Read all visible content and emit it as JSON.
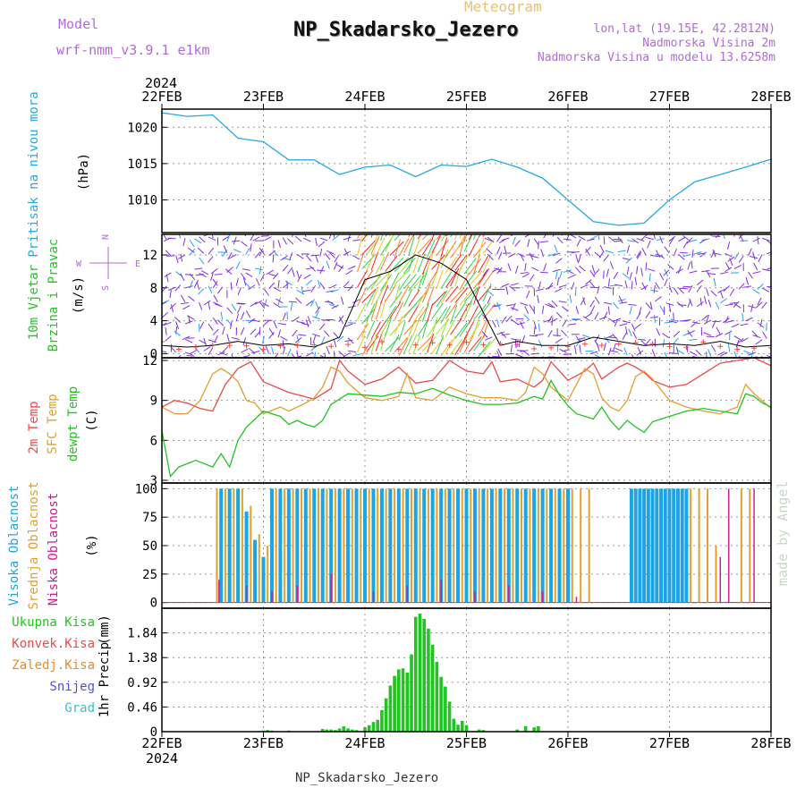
{
  "header": {
    "model_label": "Model",
    "model_value": "wrf-nmm_v3.9.1  e1km",
    "meteogram": "Meteogram",
    "title": "NP_Skadarsko_Jezero",
    "lonlat": "lon,lat (19.15E, 42.2812N)",
    "elevation": "Nadmorska Visina 2m",
    "model_elevation": "Nadmorska Visina u modelu 13.6258m",
    "footer": "NP_Skadarsko_Jezero",
    "credit": "made by Angel",
    "year": "2024"
  },
  "colors": {
    "purple": "#b36ad8",
    "meteogram": "#e8c07a",
    "pressure": "#29a8e0",
    "temp2m": "#e84a4a",
    "sfc": "#e0a030",
    "dewpt": "#22c422",
    "high_cloud": "#1ca4e4",
    "mid_cloud": "#e0a030",
    "low_cloud": "#d01c8c",
    "precip": "#22c422"
  },
  "chart_data": [
    {
      "type": "line",
      "id": "pressure",
      "ylabel_name": "Pritisak na nivou mora",
      "ylabel_unit": "(hPa)",
      "xlim": [
        0,
        144
      ],
      "ylim": [
        1005.5,
        1022.5
      ],
      "yticks": [
        1010,
        1015,
        1020
      ],
      "grid": true,
      "x_ticks": [
        "22FEB",
        "23FEB",
        "24FEB",
        "25FEB",
        "26FEB",
        "27FEB",
        "28FEB"
      ],
      "series": [
        {
          "x": [
            0,
            6,
            12,
            18,
            24,
            30,
            36,
            42,
            48,
            54,
            60,
            66,
            72,
            78,
            84,
            90,
            96,
            102,
            108,
            114,
            120,
            126,
            132,
            138,
            144
          ],
          "values": [
            1022,
            1021.5,
            1021.7,
            1018.5,
            1018,
            1015.5,
            1015.5,
            1013.5,
            1014.5,
            1014.8,
            1013.2,
            1014.8,
            1014.6,
            1015.6,
            1014.5,
            1013,
            1010,
            1007,
            1006.5,
            1006.8,
            1010,
            1012.5,
            1013.5,
            1014.5,
            1015.6
          ]
        }
      ]
    },
    {
      "type": "scatter",
      "id": "wind",
      "ylabel_name": "10m Vjetar",
      "ylabel_name2": "Brzina i Pravac",
      "ylabel_unit": "(m/s)",
      "compass_n": "N",
      "compass_s": "S",
      "compass_e": "E",
      "compass_w": "W",
      "xlim": [
        0,
        144
      ],
      "ylim": [
        -0.5,
        14.5
      ],
      "yticks": [
        0,
        4,
        8,
        12
      ],
      "grid": true,
      "series": [
        {
          "name": "speed",
          "x": [
            0,
            6,
            12,
            18,
            24,
            30,
            36,
            42,
            48,
            54,
            60,
            66,
            72,
            76,
            80,
            84,
            90,
            96,
            102,
            108,
            114,
            120,
            126,
            132,
            138,
            144
          ],
          "values": [
            1,
            0.8,
            1,
            1.5,
            1,
            1.2,
            0.8,
            2,
            9,
            10,
            12,
            11,
            9,
            5,
            1,
            1.5,
            1,
            1,
            2,
            1.5,
            1,
            1.2,
            1,
            1.5,
            0.8,
            1
          ]
        }
      ]
    },
    {
      "type": "line",
      "id": "temperature",
      "ylabel_name": "2m Temp",
      "ylabel_name2": "SFC Temp",
      "ylabel_name3": "dewpt Temp",
      "ylabel_unit": "(C)",
      "xlim": [
        0,
        144
      ],
      "ylim": [
        2.8,
        12.2
      ],
      "yticks": [
        3,
        6,
        9,
        12
      ],
      "grid": true,
      "series": [
        {
          "name": "2m Temp",
          "x": [
            0,
            3,
            6,
            9,
            12,
            15,
            18,
            21,
            24,
            30,
            36,
            40,
            42,
            44,
            48,
            52,
            56,
            60,
            64,
            68,
            72,
            76,
            78,
            80,
            84,
            88,
            90,
            92,
            96,
            100,
            102,
            104,
            108,
            110,
            112,
            114,
            116,
            120,
            124,
            128,
            132,
            136,
            140,
            144
          ],
          "values": [
            8.5,
            9,
            8.8,
            8.4,
            8.2,
            10.2,
            11.4,
            11.9,
            10.4,
            9.6,
            9.1,
            9.9,
            12,
            11.2,
            10.2,
            10.6,
            11.5,
            10.3,
            10.5,
            12,
            11.2,
            11,
            11.9,
            10.4,
            10.6,
            10,
            10.5,
            11.9,
            10.5,
            11.2,
            11.8,
            10.6,
            11.5,
            11.8,
            11.5,
            11.1,
            10.5,
            10,
            10.2,
            11,
            11.8,
            12,
            12.2,
            11.6
          ]
        },
        {
          "name": "SFC Temp",
          "x": [
            0,
            3,
            6,
            9,
            12,
            14,
            16,
            18,
            20,
            22,
            24,
            28,
            30,
            34,
            36,
            38,
            40,
            42,
            44,
            48,
            52,
            56,
            58,
            60,
            64,
            68,
            72,
            76,
            80,
            84,
            86,
            88,
            90,
            92,
            96,
            98,
            100,
            102,
            104,
            106,
            108,
            110,
            112,
            114,
            116,
            120,
            124,
            128,
            132,
            136,
            138,
            140,
            144
          ],
          "values": [
            8.5,
            8,
            8,
            9,
            11,
            11.4,
            11,
            10.4,
            9,
            8.8,
            8,
            8.5,
            8.2,
            8.8,
            9.2,
            10,
            11.5,
            11.2,
            10.3,
            9.2,
            9,
            9.3,
            11,
            9.2,
            9,
            10,
            9.5,
            9.2,
            9.2,
            9,
            9.6,
            11.5,
            11,
            10,
            9,
            10.2,
            11.4,
            11,
            9.2,
            8.5,
            8.2,
            9,
            10.8,
            11.2,
            10.6,
            9,
            8.5,
            8.2,
            8,
            8.5,
            10.2,
            9.5,
            8.4
          ]
        },
        {
          "name": "dewpt Temp",
          "x": [
            0,
            2,
            4,
            8,
            12,
            14,
            16,
            18,
            20,
            24,
            28,
            30,
            32,
            34,
            36,
            38,
            40,
            44,
            48,
            52,
            56,
            60,
            64,
            68,
            72,
            76,
            80,
            84,
            88,
            90,
            92,
            94,
            96,
            98,
            100,
            102,
            104,
            106,
            108,
            110,
            112,
            114,
            116,
            120,
            124,
            128,
            132,
            136,
            138,
            140,
            142,
            144
          ],
          "values": [
            6.7,
            3.3,
            4,
            4.5,
            4,
            5,
            4,
            6,
            7,
            8.2,
            7.8,
            7.2,
            7.5,
            7.2,
            7,
            7.5,
            8.7,
            9.5,
            9.4,
            9.3,
            9.6,
            9.5,
            9.9,
            9.4,
            9,
            8.7,
            8.7,
            8.8,
            9.3,
            9.1,
            10.5,
            9.4,
            8.6,
            8,
            7.8,
            7.6,
            8.5,
            7.5,
            6.8,
            7.5,
            7,
            6.6,
            7.4,
            7.8,
            8.2,
            8.4,
            8.2,
            8,
            9.5,
            9.3,
            8.8,
            8.5
          ]
        }
      ]
    },
    {
      "type": "bar",
      "id": "clouds",
      "ylabel_name": "Visoka Oblacnost",
      "ylabel_name2": "Srednja Oblacnost",
      "ylabel_name3": "Niska Oblacnost",
      "ylabel_unit": "(%)",
      "xlim": [
        0,
        144
      ],
      "ylim": [
        -5,
        105
      ],
      "yticks": [
        0,
        25,
        50,
        75,
        100
      ],
      "grid": true,
      "series": [
        {
          "name": "Visoka Oblacnost",
          "x": [
            14,
            16,
            18,
            20,
            22,
            24,
            26,
            28,
            30,
            32,
            34,
            36,
            38,
            40,
            42,
            44,
            46,
            48,
            50,
            52,
            54,
            56,
            58,
            60,
            62,
            64,
            66,
            68,
            70,
            72,
            74,
            76,
            78,
            80,
            82,
            84,
            86,
            88,
            90,
            92,
            94,
            96,
            111,
            112,
            113,
            114,
            115,
            116,
            117,
            118,
            119,
            120,
            121,
            122,
            123,
            124
          ],
          "values": [
            100,
            100,
            100,
            80,
            55,
            40,
            100,
            100,
            100,
            100,
            100,
            100,
            100,
            100,
            100,
            100,
            100,
            100,
            100,
            100,
            100,
            100,
            100,
            100,
            100,
            100,
            100,
            100,
            100,
            100,
            100,
            100,
            100,
            100,
            100,
            100,
            100,
            100,
            100,
            100,
            100,
            100,
            100,
            100,
            100,
            100,
            100,
            100,
            100,
            100,
            100,
            100,
            100,
            100,
            100,
            100
          ]
        },
        {
          "name": "Srednja Oblacnost",
          "x": [
            13,
            15,
            17,
            19,
            21,
            23,
            25,
            27,
            29,
            31,
            33,
            35,
            37,
            39,
            41,
            43,
            45,
            47,
            49,
            51,
            53,
            55,
            57,
            59,
            61,
            63,
            65,
            67,
            69,
            71,
            73,
            75,
            77,
            79,
            81,
            83,
            85,
            87,
            89,
            91,
            93,
            95,
            97,
            99,
            101,
            125,
            127,
            129,
            131,
            137,
            139
          ],
          "values": [
            100,
            100,
            100,
            100,
            85,
            60,
            50,
            100,
            100,
            100,
            100,
            100,
            100,
            100,
            100,
            100,
            100,
            100,
            100,
            100,
            100,
            100,
            100,
            100,
            100,
            100,
            100,
            100,
            100,
            100,
            100,
            100,
            100,
            100,
            100,
            100,
            100,
            100,
            100,
            100,
            100,
            100,
            100,
            100,
            100,
            100,
            100,
            100,
            50,
            100,
            100
          ]
        },
        {
          "name": "Niska Oblacnost",
          "x": [
            13.5,
            20,
            26,
            32,
            40,
            50,
            58,
            66,
            74,
            82,
            90,
            98,
            132,
            134,
            140
          ],
          "values": [
            20,
            15,
            10,
            15,
            25,
            10,
            15,
            20,
            10,
            15,
            10,
            5,
            40,
            100,
            100
          ]
        }
      ]
    },
    {
      "type": "bar",
      "id": "precip",
      "ylabel_name": "1hr Precip",
      "ylabel_unit": "(mm)",
      "legend": [
        "Ukupna Kisa",
        "Konvek.Kisa",
        "Zaledj.Kisa",
        "Snijeg",
        "Grad"
      ],
      "legend_colors": [
        "#22c422",
        "#e84a4a",
        "#e88a30",
        "#5050e0",
        "#30c8c8"
      ],
      "xlim": [
        0,
        144
      ],
      "ylim": [
        0,
        2.3
      ],
      "yticks": [
        0,
        0.46,
        0.92,
        1.38,
        1.84
      ],
      "ytick_labels": [
        "0",
        "0.46",
        "0.92",
        "1.38",
        "1.84"
      ],
      "grid": true,
      "series": [
        {
          "name": "Ukupna Kisa",
          "x": [
            24,
            25,
            26,
            30,
            38,
            39,
            40,
            41,
            42,
            43,
            44,
            45,
            46,
            48,
            49,
            50,
            51,
            52,
            53,
            54,
            55,
            56,
            57,
            58,
            59,
            60,
            61,
            62,
            63,
            64,
            65,
            66,
            67,
            68,
            69,
            70,
            71,
            72,
            75,
            76,
            84,
            86,
            88,
            89
          ],
          "values": [
            0.02,
            0.03,
            0.02,
            0.02,
            0.05,
            0.04,
            0.04,
            0.03,
            0.06,
            0.1,
            0.06,
            0.04,
            0.03,
            0.08,
            0.12,
            0.18,
            0.22,
            0.4,
            0.62,
            0.86,
            1.04,
            1.16,
            1.18,
            1.1,
            1.44,
            2.14,
            2.2,
            2.1,
            1.92,
            1.62,
            1.3,
            1.02,
            0.84,
            0.56,
            0.24,
            0.13,
            0.2,
            0.12,
            0.04,
            0.03,
            0.04,
            0.1,
            0.08,
            0.1
          ]
        }
      ]
    }
  ]
}
